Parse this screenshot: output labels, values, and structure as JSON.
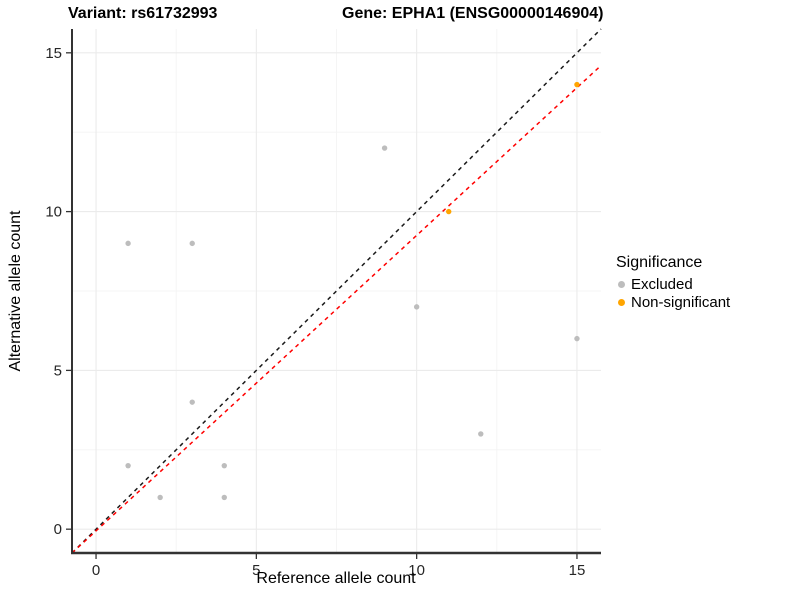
{
  "title": {
    "variant": "Variant: rs61732993",
    "gene": "Gene: EPHA1 (ENSG00000146904)"
  },
  "chart_data": {
    "type": "scatter",
    "xlabel": "Reference allele count",
    "ylabel": "Alternative allele count",
    "xlim": [
      -0.75,
      15.75
    ],
    "ylim": [
      -0.75,
      15.75
    ],
    "x_ticks": [
      0,
      5,
      10,
      15
    ],
    "y_ticks": [
      0,
      5,
      10,
      15
    ],
    "x_minor_gridlines": [
      2.5,
      7.5,
      12.5
    ],
    "y_minor_gridlines": [
      2.5,
      7.5,
      12.5
    ],
    "grid": true,
    "series": [
      {
        "name": "Excluded",
        "color": "#bdbdbd",
        "points": [
          [
            1,
            2
          ],
          [
            1,
            9
          ],
          [
            2,
            1
          ],
          [
            3,
            4
          ],
          [
            3,
            9
          ],
          [
            4,
            1
          ],
          [
            4,
            2
          ],
          [
            9,
            12
          ],
          [
            10,
            7
          ],
          [
            12,
            3
          ],
          [
            15,
            6
          ]
        ]
      },
      {
        "name": "Non-significant",
        "color": "#ffa500",
        "points": [
          [
            11,
            10
          ],
          [
            15,
            14
          ]
        ]
      }
    ],
    "lines": [
      {
        "name": "identity-line",
        "color": "#1a1a1a",
        "dash": "4,4",
        "x1": -0.75,
        "y1": -0.75,
        "x2": 15.75,
        "y2": 15.75
      },
      {
        "name": "fit-line",
        "color": "#ff0000",
        "dash": "4,4",
        "x1": -0.75,
        "y1": -0.75,
        "x2": 15.75,
        "y2": 14.6
      }
    ],
    "legend": {
      "title": "Significance",
      "position": "right",
      "items": [
        {
          "label": "Excluded",
          "color": "#bdbdbd"
        },
        {
          "label": "Non-significant",
          "color": "#ffa500"
        }
      ]
    },
    "style": {
      "major_grid_color": "#ebebeb",
      "minor_grid_color": "#f3f3f3",
      "axis_line_color": "#333333",
      "tick_label_color": "#262626",
      "point_radius": 2.7
    }
  }
}
